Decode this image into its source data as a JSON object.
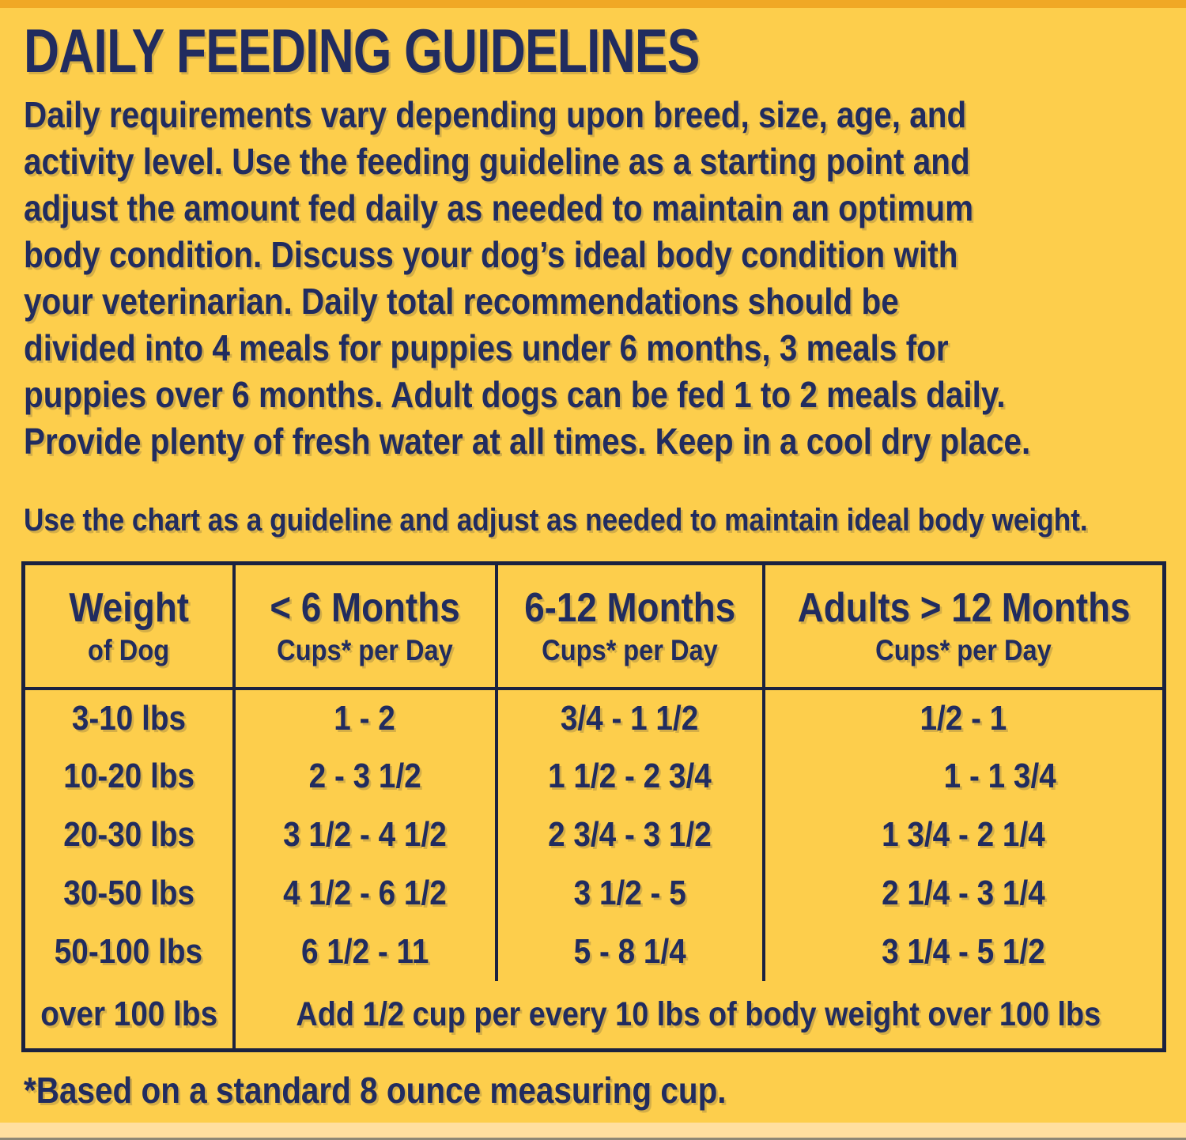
{
  "title": "DAILY FEEDING GUIDELINES",
  "intro_lines": [
    "Daily requirements vary depending upon breed, size, age, and",
    "activity level. Use the feeding guideline as a starting point and",
    "adjust the amount fed daily as needed to maintain an optimum",
    "body condition. Discuss your dog’s ideal body condition with",
    "your veterinarian. Daily total recommendations should be",
    "divided into 4 meals for puppies under 6 months, 3 meals for",
    "puppies over 6 months. Adult dogs can be fed 1 to 2 meals daily.",
    "Provide plenty of fresh water at all times. Keep in a cool dry place."
  ],
  "chart_note": "Use the chart as a guideline and adjust as needed to maintain ideal body weight.",
  "table": {
    "headers": [
      {
        "title": "Weight",
        "subtitle": "of Dog"
      },
      {
        "title": "< 6 Months",
        "subtitle": "Cups* per Day"
      },
      {
        "title": "6-12 Months",
        "subtitle": "Cups* per Day"
      },
      {
        "title": "Adults > 12 Months",
        "subtitle": "Cups* per Day"
      }
    ],
    "rows": [
      [
        "3-10 lbs",
        "1 - 2",
        "3/4 - 1 1/2",
        "1/2 - 1"
      ],
      [
        "10-20 lbs",
        "2 - 3 1/2",
        "1 1/2 - 2 3/4",
        "1 - 1 3/4"
      ],
      [
        "20-30 lbs",
        "3 1/2 - 4 1/2",
        "2 3/4 - 3 1/2",
        "1 3/4 - 2 1/4"
      ],
      [
        "30-50 lbs",
        "4 1/2 - 6 1/2",
        "3 1/2 - 5",
        "2 1/4 - 3 1/4"
      ],
      [
        "50-100 lbs",
        "6 1/2 - 11",
        "5 - 8 1/4",
        "3 1/4 - 5 1/2"
      ]
    ],
    "footer_row": {
      "weight": "over 100 lbs",
      "note": "Add 1/2 cup per every 10 lbs of body weight over 100 lbs"
    }
  },
  "footnote": "*Based on a standard 8 ounce measuring cup.",
  "colors": {
    "background": "#FDCE4C",
    "top_band": "#F0A825",
    "bottom_band": "#FFDFA0",
    "text_navy": "#212C5F",
    "border_navy": "#1B2240"
  }
}
